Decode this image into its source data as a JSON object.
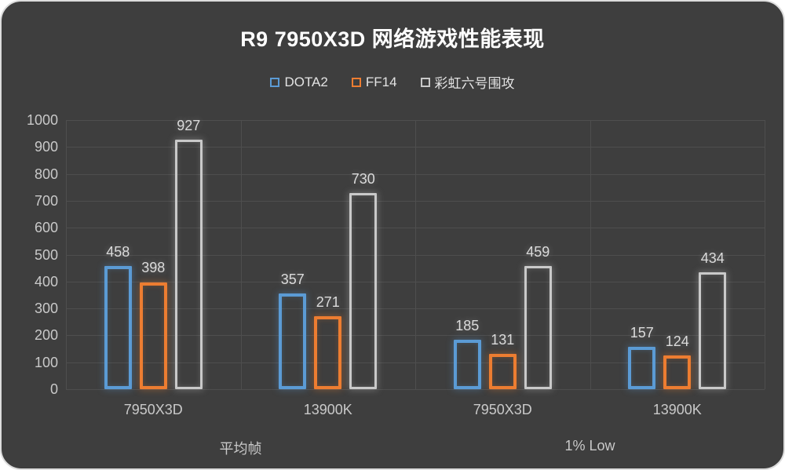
{
  "chart_data": {
    "type": "bar",
    "title": "R9 7950X3D 网络游戏性能表现",
    "bar_style": "outline",
    "legend_position": "top",
    "grid": true,
    "sections": [
      "平均帧",
      "1% Low"
    ],
    "categories": [
      "7950X3D",
      "13900K",
      "7950X3D",
      "13900K"
    ],
    "category_section_index": [
      0,
      0,
      1,
      1
    ],
    "series": [
      {
        "name": "DOTA2",
        "color": "#5B9BD5",
        "values": [
          458,
          357,
          185,
          157
        ]
      },
      {
        "name": "FF14",
        "color": "#ED7D31",
        "values": [
          398,
          271,
          131,
          124
        ]
      },
      {
        "name": "彩虹六号围攻",
        "color": "#C9C9C9",
        "values": [
          927,
          730,
          459,
          434
        ]
      }
    ],
    "ylim": [
      0,
      1000
    ],
    "yticks": [
      0,
      100,
      200,
      300,
      400,
      500,
      600,
      700,
      800,
      900,
      1000
    ]
  },
  "colors": {
    "background": "#3E3E3E",
    "gridline": "#4E4E4E",
    "axis_text": "#C9C9C9",
    "data_label": "#DBDBDB",
    "title_text": "#FFFFFF",
    "legend_text": "#E3E3E3",
    "page_border": "#DCDCDC"
  }
}
